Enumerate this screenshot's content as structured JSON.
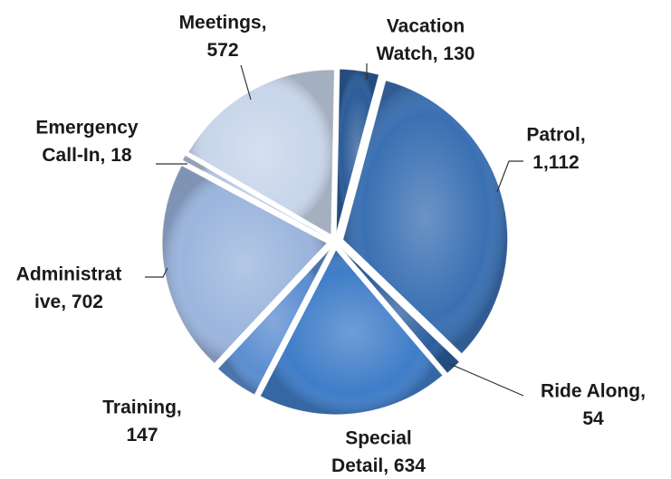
{
  "chart_data": {
    "type": "pie",
    "labels": [
      "Vacation\nWatch, 130",
      "Patrol,\n1,112",
      "Ride Along,\n54",
      "Special\nDetail, 634",
      "Training,\n147",
      "Administrat\nive, 702",
      "Emergency\nCall-In, 18",
      "Meetings,\n572"
    ],
    "values": [
      130,
      1112,
      54,
      634,
      147,
      702,
      18,
      572
    ],
    "colors": [
      "#2c5c99",
      "#3a70b3",
      "#2b5d9c",
      "#3f7dc8",
      "#5b8dd0",
      "#9bb5dd",
      "#b3c5e2",
      "#c8d5ea"
    ]
  }
}
